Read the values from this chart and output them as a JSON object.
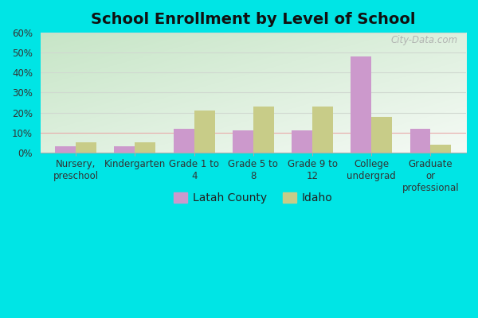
{
  "title": "School Enrollment by Level of School",
  "categories": [
    "Nursery,\npreschool",
    "Kindergarten",
    "Grade 1 to\n4",
    "Grade 5 to\n8",
    "Grade 9 to\n12",
    "College\nundergrad",
    "Graduate\nor\nprofessional"
  ],
  "latah_values": [
    3,
    3,
    12,
    11,
    11,
    48,
    12
  ],
  "idaho_values": [
    5,
    5,
    21,
    23,
    23,
    18,
    4
  ],
  "latah_color": "#cc99cc",
  "idaho_color": "#c8cc88",
  "ylim": [
    0,
    60
  ],
  "yticks": [
    0,
    10,
    20,
    30,
    40,
    50,
    60
  ],
  "ytick_labels": [
    "0%",
    "10%",
    "20%",
    "30%",
    "40%",
    "50%",
    "60%"
  ],
  "outer_bg": "#00e5e5",
  "plot_bg_top_left": "#c8e8c8",
  "plot_bg_bottom_right": "#f0f8f0",
  "watermark": "City-Data.com",
  "legend_latah": "Latah County",
  "legend_idaho": "Idaho",
  "bar_width": 0.35,
  "title_fontsize": 14,
  "tick_fontsize": 8.5,
  "legend_fontsize": 10,
  "grid_color": "#d0d8d0",
  "title_color": "#111111"
}
